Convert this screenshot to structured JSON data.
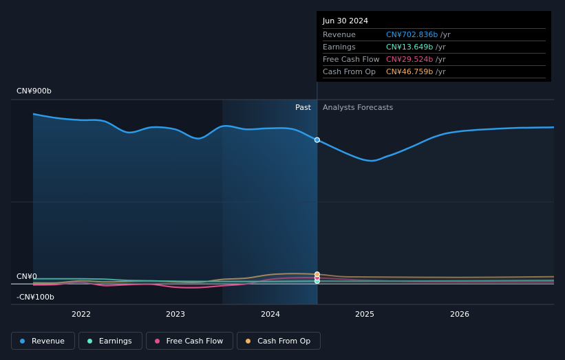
{
  "chart_data": {
    "type": "line",
    "x_ticks": [
      "2022",
      "2023",
      "2024",
      "2025",
      "2026"
    ],
    "y_labels": {
      "top": "CN¥900b",
      "zero": "CN¥0",
      "bottom": "-CN¥100b"
    },
    "ylim": [
      -100,
      900
    ],
    "region_labels": {
      "past": "Past",
      "forecast": "Analysts Forecasts"
    },
    "series": [
      {
        "name": "Revenue",
        "color": "#2d9be8",
        "fill": true,
        "points": [
          [
            2021.5,
            830
          ],
          [
            2021.75,
            810
          ],
          [
            2022.0,
            800
          ],
          [
            2022.25,
            795
          ],
          [
            2022.5,
            740
          ],
          [
            2022.75,
            765
          ],
          [
            2023.0,
            755
          ],
          [
            2023.25,
            710
          ],
          [
            2023.5,
            770
          ],
          [
            2023.75,
            755
          ],
          [
            2024.0,
            760
          ],
          [
            2024.25,
            755
          ],
          [
            2024.5,
            703
          ],
          [
            2025.0,
            605
          ],
          [
            2025.25,
            625
          ],
          [
            2025.5,
            670
          ],
          [
            2025.75,
            720
          ],
          [
            2026.0,
            745
          ],
          [
            2026.5,
            760
          ],
          [
            2027.0,
            765
          ]
        ]
      },
      {
        "name": "Earnings",
        "color": "#5ee8c8",
        "fill": false,
        "points": [
          [
            2021.5,
            25
          ],
          [
            2022.0,
            25
          ],
          [
            2022.25,
            23
          ],
          [
            2022.5,
            17
          ],
          [
            2023.0,
            13
          ],
          [
            2023.5,
            12
          ],
          [
            2024.0,
            12
          ],
          [
            2024.5,
            13.6
          ],
          [
            2025.0,
            13
          ],
          [
            2026.0,
            15
          ],
          [
            2027.0,
            17
          ]
        ]
      },
      {
        "name": "Free Cash Flow",
        "color": "#e04e8c",
        "fill": false,
        "points": [
          [
            2021.5,
            -5
          ],
          [
            2021.75,
            -3
          ],
          [
            2022.0,
            8
          ],
          [
            2022.25,
            -8
          ],
          [
            2022.5,
            -4
          ],
          [
            2022.75,
            -2
          ],
          [
            2023.0,
            -16
          ],
          [
            2023.25,
            -18
          ],
          [
            2023.5,
            -9
          ],
          [
            2023.75,
            0
          ],
          [
            2024.0,
            22
          ],
          [
            2024.25,
            30
          ],
          [
            2024.5,
            29.5
          ],
          [
            2025.0,
            18
          ],
          [
            2025.5,
            12
          ],
          [
            2026.0,
            10
          ],
          [
            2027.0,
            10
          ]
        ]
      },
      {
        "name": "Cash From Op",
        "color": "#f0b060",
        "fill": false,
        "points": [
          [
            2021.5,
            5
          ],
          [
            2021.75,
            5
          ],
          [
            2022.0,
            15
          ],
          [
            2022.25,
            10
          ],
          [
            2022.5,
            12
          ],
          [
            2022.75,
            15
          ],
          [
            2023.0,
            10
          ],
          [
            2023.25,
            8
          ],
          [
            2023.5,
            22
          ],
          [
            2023.75,
            28
          ],
          [
            2024.0,
            45
          ],
          [
            2024.25,
            50
          ],
          [
            2024.5,
            46.8
          ],
          [
            2024.75,
            36
          ],
          [
            2025.0,
            34
          ],
          [
            2026.0,
            32
          ],
          [
            2027.0,
            35
          ]
        ]
      }
    ]
  },
  "tooltip": {
    "date": "Jun 30 2024",
    "rows": [
      {
        "name": "Revenue",
        "value": "CN¥702.836b",
        "unit": " /yr",
        "color": "#2d9be8"
      },
      {
        "name": "Earnings",
        "value": "CN¥13.649b",
        "unit": " /yr",
        "color": "#5ee8c8"
      },
      {
        "name": "Free Cash Flow",
        "value": "CN¥29.524b",
        "unit": " /yr",
        "color": "#e04e8c"
      },
      {
        "name": "Cash From Op",
        "value": "CN¥46.759b",
        "unit": " /yr",
        "color": "#f0b060"
      }
    ]
  },
  "legend": [
    {
      "label": "Revenue",
      "color": "#2d9be8"
    },
    {
      "label": "Earnings",
      "color": "#5ee8c8"
    },
    {
      "label": "Free Cash Flow",
      "color": "#e04e8c"
    },
    {
      "label": "Cash From Op",
      "color": "#f0b060"
    }
  ]
}
